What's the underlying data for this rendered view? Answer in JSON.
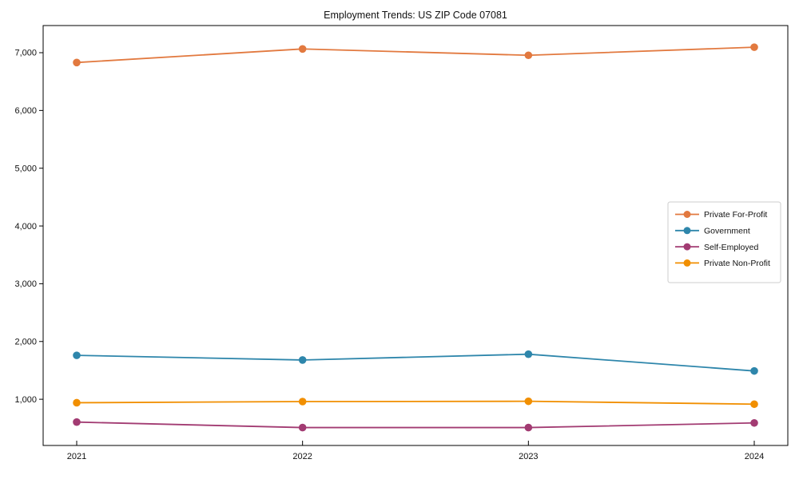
{
  "chart_data": {
    "type": "line",
    "title": "Employment Trends: US ZIP Code 07081",
    "x": [
      "2021",
      "2022",
      "2023",
      "2024"
    ],
    "series": [
      {
        "name": "Private For-Profit",
        "color": "#E2793F",
        "values": [
          6830,
          7065,
          6955,
          7095
        ]
      },
      {
        "name": "Government",
        "color": "#2E86AB",
        "values": [
          1760,
          1680,
          1780,
          1490
        ]
      },
      {
        "name": "Self-Employed",
        "color": "#A23B72",
        "values": [
          605,
          510,
          510,
          590
        ]
      },
      {
        "name": "Private Non-Profit",
        "color": "#F18F01",
        "values": [
          940,
          960,
          965,
          915
        ]
      }
    ],
    "xlabel": "",
    "ylabel": "",
    "ylim": [
      200,
      7470
    ],
    "yticks": [
      1000,
      2000,
      3000,
      4000,
      5000,
      6000,
      7000
    ],
    "ytick_labels": [
      "1,000",
      "2,000",
      "3,000",
      "4,000",
      "5,000",
      "6,000",
      "7,000"
    ],
    "grid": false,
    "legend_position": "right-middle",
    "background_color": "#ffffff",
    "axis_color": "#000000",
    "legend_border_color": "#cccccc"
  }
}
